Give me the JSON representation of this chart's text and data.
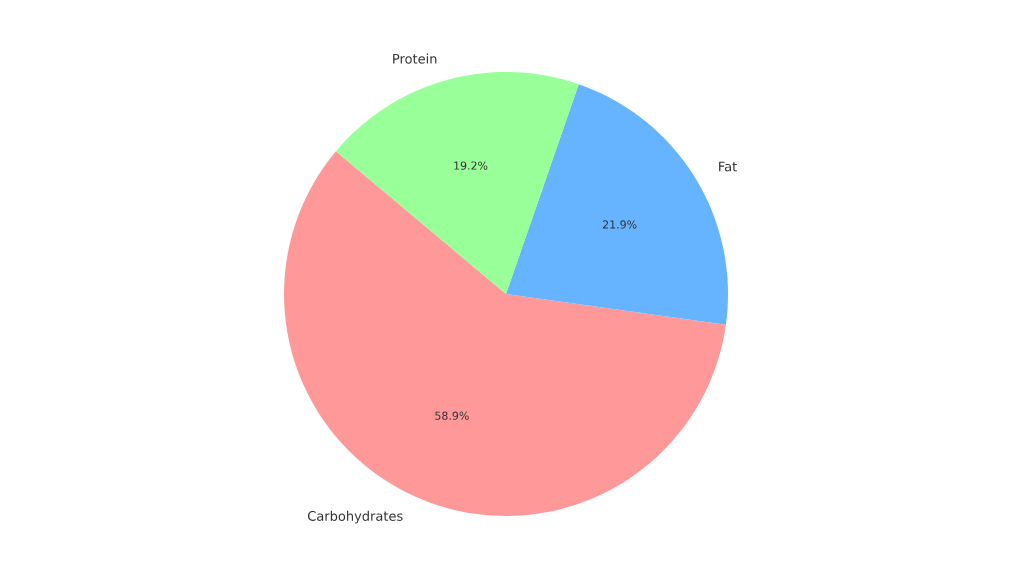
{
  "chart_data": {
    "type": "pie",
    "categories": [
      "Carbohydrates",
      "Fat",
      "Protein"
    ],
    "values": [
      58.9,
      21.9,
      19.2
    ],
    "value_labels": [
      "58.9%",
      "21.9%",
      "19.2%"
    ],
    "colors": [
      "#ff9999",
      "#66b3ff",
      "#99ff99"
    ]
  }
}
